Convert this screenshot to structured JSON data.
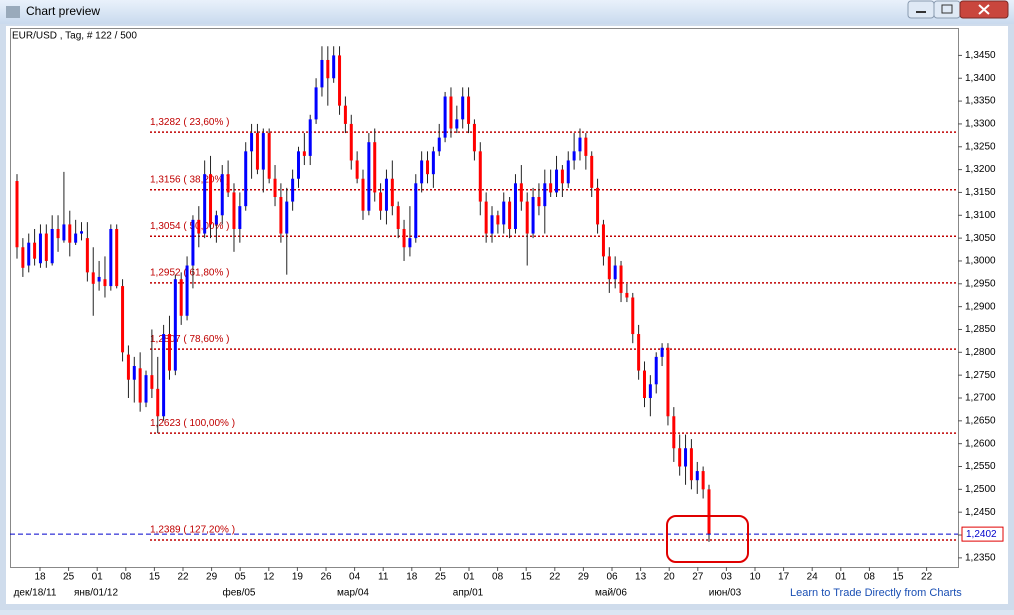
{
  "window": {
    "title": "Chart preview",
    "footer_link": "Learn to Trade Directly from Charts"
  },
  "chart_data": {
    "type": "candlestick",
    "title": "EUR/USD , Tag, # 122 / 500",
    "up_color": "#0000ff",
    "down_color": "#ff0000",
    "ylim": [
      1.233,
      1.351
    ],
    "yticks": [
      {
        "value": 1.345,
        "label": "1,3450"
      },
      {
        "value": 1.34,
        "label": "1,3400"
      },
      {
        "value": 1.335,
        "label": "1,3350"
      },
      {
        "value": 1.33,
        "label": "1,3300"
      },
      {
        "value": 1.325,
        "label": "1,3250"
      },
      {
        "value": 1.32,
        "label": "1,3200"
      },
      {
        "value": 1.315,
        "label": "1,3150"
      },
      {
        "value": 1.31,
        "label": "1,3100"
      },
      {
        "value": 1.305,
        "label": "1,3050"
      },
      {
        "value": 1.3,
        "label": "1,3000"
      },
      {
        "value": 1.295,
        "label": "1,2950"
      },
      {
        "value": 1.29,
        "label": "1,2900"
      },
      {
        "value": 1.285,
        "label": "1,2850"
      },
      {
        "value": 1.28,
        "label": "1,2800"
      },
      {
        "value": 1.275,
        "label": "1,2750"
      },
      {
        "value": 1.27,
        "label": "1,2700"
      },
      {
        "value": 1.265,
        "label": "1,2650"
      },
      {
        "value": 1.26,
        "label": "1,2600"
      },
      {
        "value": 1.255,
        "label": "1,2550"
      },
      {
        "value": 1.25,
        "label": "1,2500"
      },
      {
        "value": 1.245,
        "label": "1,2450"
      },
      {
        "value": 1.24,
        "label": "1,2400"
      },
      {
        "value": 1.235,
        "label": "1,2350"
      }
    ],
    "x_labels": [
      "18",
      "25",
      "01",
      "08",
      "15",
      "22",
      "29",
      "05",
      "12",
      "19",
      "26",
      "04",
      "11",
      "18",
      "25",
      "01",
      "08",
      "15",
      "22",
      "29",
      "06",
      "13",
      "20",
      "27",
      "03",
      "10",
      "17",
      "24",
      "01",
      "08",
      "15",
      "22"
    ],
    "x_sublabels": [
      "дек/18/11",
      "янв/01/12",
      "фев/05",
      "мар/04",
      "апр/01",
      "май/06",
      "июн/03"
    ],
    "fib_levels": [
      {
        "value": 1.3282,
        "label": "1,3282 ( 23,60% )"
      },
      {
        "value": 1.3156,
        "label": "1,3156 ( 38,20% )"
      },
      {
        "value": 1.3054,
        "label": "1,3054 ( 50,00% )"
      },
      {
        "value": 1.2952,
        "label": "1,2952 ( 61,80% )"
      },
      {
        "value": 1.2807,
        "label": "1,2807 ( 78,60% )"
      },
      {
        "value": 1.2623,
        "label": "1,2623 ( 100,00% )"
      },
      {
        "value": 1.2389,
        "label": "1,2389 ( 127,20% )"
      }
    ],
    "current_price": {
      "value": 1.2402,
      "label": "1,2402"
    },
    "candles": [
      [
        1.3175,
        1.319,
        1.3005,
        1.303
      ],
      [
        1.303,
        1.305,
        1.2965,
        1.2985
      ],
      [
        1.299,
        1.306,
        1.2975,
        1.304
      ],
      [
        1.304,
        1.307,
        1.299,
        1.3005
      ],
      [
        1.2995,
        1.308,
        1.2985,
        1.306
      ],
      [
        1.306,
        1.308,
        1.2985,
        1.3
      ],
      [
        1.2995,
        1.31,
        1.299,
        1.307
      ],
      [
        1.307,
        1.31,
        1.302,
        1.305
      ],
      [
        1.3045,
        1.3195,
        1.304,
        1.308
      ],
      [
        1.308,
        1.311,
        1.301,
        1.304
      ],
      [
        1.304,
        1.309,
        1.3035,
        1.306
      ],
      [
        1.306,
        1.3085,
        1.3045,
        1.3065
      ],
      [
        1.305,
        1.3085,
        1.2955,
        1.2975
      ],
      [
        1.2975,
        1.303,
        1.288,
        1.295
      ],
      [
        1.2955,
        1.3,
        1.2935,
        1.2965
      ],
      [
        1.296,
        1.301,
        1.292,
        1.2945
      ],
      [
        1.2945,
        1.308,
        1.2935,
        1.307
      ],
      [
        1.307,
        1.308,
        1.294,
        1.2945
      ],
      [
        1.2945,
        1.296,
        1.278,
        1.28
      ],
      [
        1.2795,
        1.2815,
        1.27,
        1.274
      ],
      [
        1.274,
        1.279,
        1.269,
        1.277
      ],
      [
        1.2765,
        1.28,
        1.267,
        1.269
      ],
      [
        1.269,
        1.276,
        1.268,
        1.275
      ],
      [
        1.275,
        1.285,
        1.27,
        1.272
      ],
      [
        1.272,
        1.279,
        1.2623,
        1.266
      ],
      [
        1.266,
        1.286,
        1.265,
        1.284
      ],
      [
        1.284,
        1.288,
        1.274,
        1.276
      ],
      [
        1.276,
        1.297,
        1.275,
        1.296
      ],
      [
        1.296,
        1.2975,
        1.286,
        1.288
      ],
      [
        1.288,
        1.301,
        1.287,
        1.299
      ],
      [
        1.299,
        1.31,
        1.294,
        1.309
      ],
      [
        1.309,
        1.312,
        1.303,
        1.306
      ],
      [
        1.306,
        1.322,
        1.305,
        1.319
      ],
      [
        1.319,
        1.323,
        1.305,
        1.308
      ],
      [
        1.308,
        1.311,
        1.304,
        1.31
      ],
      [
        1.31,
        1.321,
        1.308,
        1.319
      ],
      [
        1.319,
        1.322,
        1.314,
        1.315
      ],
      [
        1.315,
        1.317,
        1.302,
        1.307
      ],
      [
        1.307,
        1.315,
        1.304,
        1.312
      ],
      [
        1.312,
        1.326,
        1.311,
        1.324
      ],
      [
        1.324,
        1.33,
        1.318,
        1.328
      ],
      [
        1.328,
        1.33,
        1.319,
        1.32
      ],
      [
        1.32,
        1.329,
        1.315,
        1.328
      ],
      [
        1.328,
        1.329,
        1.317,
        1.318
      ],
      [
        1.318,
        1.321,
        1.312,
        1.314
      ],
      [
        1.314,
        1.317,
        1.304,
        1.306
      ],
      [
        1.306,
        1.316,
        1.297,
        1.313
      ],
      [
        1.313,
        1.32,
        1.311,
        1.318
      ],
      [
        1.318,
        1.325,
        1.316,
        1.324
      ],
      [
        1.324,
        1.328,
        1.321,
        1.323
      ],
      [
        1.323,
        1.332,
        1.321,
        1.331
      ],
      [
        1.331,
        1.34,
        1.33,
        1.338
      ],
      [
        1.338,
        1.347,
        1.336,
        1.344
      ],
      [
        1.344,
        1.347,
        1.334,
        1.34
      ],
      [
        1.34,
        1.347,
        1.339,
        1.345
      ],
      [
        1.345,
        1.347,
        1.332,
        1.334
      ],
      [
        1.334,
        1.336,
        1.328,
        1.33
      ],
      [
        1.33,
        1.332,
        1.32,
        1.322
      ],
      [
        1.322,
        1.324,
        1.317,
        1.318
      ],
      [
        1.318,
        1.32,
        1.309,
        1.311
      ],
      [
        1.311,
        1.328,
        1.31,
        1.326
      ],
      [
        1.326,
        1.329,
        1.313,
        1.315
      ],
      [
        1.315,
        1.317,
        1.309,
        1.311
      ],
      [
        1.311,
        1.32,
        1.308,
        1.318
      ],
      [
        1.318,
        1.322,
        1.31,
        1.312
      ],
      [
        1.312,
        1.313,
        1.305,
        1.307
      ],
      [
        1.307,
        1.309,
        1.3,
        1.303
      ],
      [
        1.303,
        1.312,
        1.301,
        1.305
      ],
      [
        1.305,
        1.319,
        1.304,
        1.317
      ],
      [
        1.317,
        1.324,
        1.315,
        1.322
      ],
      [
        1.322,
        1.324,
        1.317,
        1.319
      ],
      [
        1.319,
        1.325,
        1.316,
        1.324
      ],
      [
        1.324,
        1.33,
        1.323,
        1.327
      ],
      [
        1.327,
        1.337,
        1.326,
        1.336
      ],
      [
        1.336,
        1.338,
        1.327,
        1.329
      ],
      [
        1.329,
        1.334,
        1.328,
        1.331
      ],
      [
        1.331,
        1.338,
        1.329,
        1.336
      ],
      [
        1.336,
        1.338,
        1.328,
        1.33
      ],
      [
        1.33,
        1.331,
        1.322,
        1.324
      ],
      [
        1.324,
        1.326,
        1.31,
        1.313
      ],
      [
        1.313,
        1.315,
        1.304,
        1.306
      ],
      [
        1.306,
        1.312,
        1.304,
        1.31
      ],
      [
        1.31,
        1.311,
        1.306,
        1.308
      ],
      [
        1.308,
        1.315,
        1.306,
        1.313
      ],
      [
        1.313,
        1.314,
        1.305,
        1.307
      ],
      [
        1.307,
        1.319,
        1.306,
        1.317
      ],
      [
        1.317,
        1.321,
        1.311,
        1.313
      ],
      [
        1.313,
        1.315,
        1.299,
        1.306
      ],
      [
        1.306,
        1.316,
        1.305,
        1.314
      ],
      [
        1.314,
        1.317,
        1.31,
        1.312
      ],
      [
        1.312,
        1.32,
        1.306,
        1.317
      ],
      [
        1.317,
        1.32,
        1.314,
        1.315
      ],
      [
        1.315,
        1.323,
        1.314,
        1.32
      ],
      [
        1.32,
        1.321,
        1.314,
        1.317
      ],
      [
        1.317,
        1.324,
        1.316,
        1.322
      ],
      [
        1.322,
        1.328,
        1.32,
        1.324
      ],
      [
        1.324,
        1.329,
        1.322,
        1.327
      ],
      [
        1.327,
        1.328,
        1.32,
        1.323
      ],
      [
        1.323,
        1.324,
        1.314,
        1.316
      ],
      [
        1.316,
        1.318,
        1.306,
        1.308
      ],
      [
        1.308,
        1.309,
        1.299,
        1.301
      ],
      [
        1.301,
        1.303,
        1.293,
        1.296
      ],
      [
        1.296,
        1.301,
        1.294,
        1.299
      ],
      [
        1.299,
        1.3,
        1.291,
        1.293
      ],
      [
        1.293,
        1.295,
        1.291,
        1.292
      ],
      [
        1.292,
        1.293,
        1.282,
        1.284
      ],
      [
        1.284,
        1.286,
        1.274,
        1.276
      ],
      [
        1.276,
        1.278,
        1.268,
        1.27
      ],
      [
        1.27,
        1.275,
        1.266,
        1.273
      ],
      [
        1.273,
        1.28,
        1.271,
        1.279
      ],
      [
        1.279,
        1.282,
        1.277,
        1.281
      ],
      [
        1.281,
        1.282,
        1.264,
        1.266
      ],
      [
        1.266,
        1.268,
        1.256,
        1.259
      ],
      [
        1.259,
        1.262,
        1.253,
        1.255
      ],
      [
        1.255,
        1.262,
        1.251,
        1.259
      ],
      [
        1.259,
        1.261,
        1.25,
        1.252
      ],
      [
        1.252,
        1.256,
        1.249,
        1.254
      ],
      [
        1.254,
        1.255,
        1.248,
        1.25
      ],
      [
        1.25,
        1.251,
        1.2385,
        1.2402
      ]
    ]
  }
}
